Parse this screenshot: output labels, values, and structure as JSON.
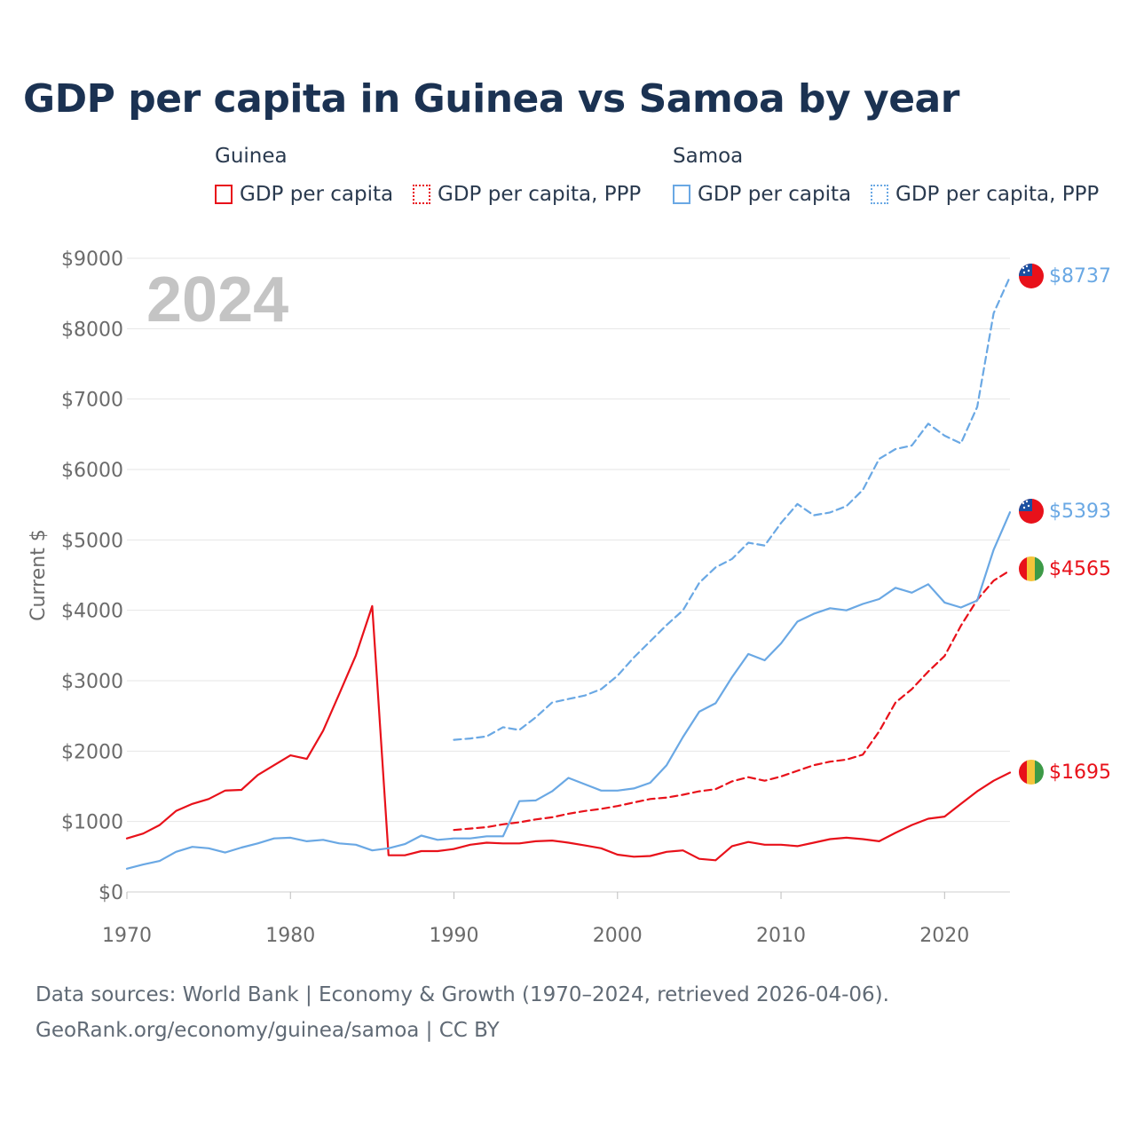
{
  "title": "GDP per capita in Guinea vs Samoa by year",
  "year_watermark": "2024",
  "legend": {
    "groups": [
      {
        "name": "Guinea",
        "items": [
          "GDP per capita",
          "GDP per capita, PPP"
        ],
        "color": "#e8111a"
      },
      {
        "name": "Samoa",
        "items": [
          "GDP per capita",
          "GDP per capita, PPP"
        ],
        "color": "#6aa8e4"
      }
    ]
  },
  "sources": {
    "line1": "Data sources: World Bank | Economy & Growth (1970–2024, retrieved 2026-04-06).",
    "line2": "GeoRank.org/economy/guinea/samoa | CC BY"
  },
  "chart_data": {
    "type": "line",
    "ylabel": "Current $",
    "xlim": [
      1970,
      2024
    ],
    "ylim": [
      0,
      9000
    ],
    "x_ticks": [
      1970,
      1980,
      1990,
      2000,
      2010,
      2020
    ],
    "x_tick_labels": [
      "1970",
      "1980",
      "1990",
      "2000",
      "2010",
      "2020"
    ],
    "y_ticks": [
      0,
      1000,
      2000,
      3000,
      4000,
      5000,
      6000,
      7000,
      8000,
      9000
    ],
    "y_tick_labels": [
      "$0",
      "$1000",
      "$2000",
      "$3000",
      "$4000",
      "$5000",
      "$6000",
      "$7000",
      "$8000",
      "$9000"
    ],
    "grid": true,
    "series": [
      {
        "name": "Guinea GDP per capita",
        "country": "Guinea",
        "color": "#e8111a",
        "dashed": false,
        "end_label": "$1695",
        "x_start": 1970,
        "values": [
          760,
          830,
          950,
          1150,
          1250,
          1320,
          1440,
          1450,
          1660,
          1800,
          1940,
          1890,
          2290,
          2820,
          3360,
          4060,
          520,
          520,
          580,
          580,
          610,
          670,
          700,
          690,
          690,
          720,
          730,
          700,
          660,
          620,
          530,
          500,
          510,
          570,
          590,
          470,
          450,
          650,
          710,
          670,
          670,
          650,
          700,
          750,
          770,
          750,
          720,
          840,
          950,
          1040,
          1070,
          1250,
          1430,
          1580,
          1695
        ]
      },
      {
        "name": "Guinea GDP per capita, PPP",
        "country": "Guinea",
        "color": "#e8111a",
        "dashed": true,
        "end_label": "$4565",
        "x_start": 1990,
        "values": [
          880,
          900,
          920,
          960,
          990,
          1030,
          1060,
          1110,
          1150,
          1180,
          1220,
          1270,
          1320,
          1340,
          1380,
          1430,
          1460,
          1570,
          1630,
          1580,
          1640,
          1720,
          1800,
          1850,
          1880,
          1950,
          2280,
          2690,
          2880,
          3130,
          3350,
          3780,
          4150,
          4420,
          4565
        ]
      },
      {
        "name": "Samoa GDP per capita",
        "country": "Samoa",
        "color": "#6aa8e4",
        "dashed": false,
        "end_label": "$5393",
        "x_start": 1970,
        "values": [
          330,
          390,
          440,
          570,
          640,
          620,
          560,
          630,
          690,
          760,
          770,
          720,
          740,
          690,
          670,
          590,
          620,
          680,
          800,
          740,
          760,
          760,
          790,
          790,
          1290,
          1300,
          1430,
          1620,
          1530,
          1440,
          1440,
          1470,
          1550,
          1800,
          2200,
          2560,
          2680,
          3050,
          3380,
          3290,
          3530,
          3840,
          3950,
          4030,
          4000,
          4090,
          4160,
          4320,
          4250,
          4370,
          4110,
          4040,
          4140,
          4860,
          5393
        ]
      },
      {
        "name": "Samoa GDP per capita, PPP",
        "country": "Samoa",
        "color": "#6aa8e4",
        "dashed": true,
        "end_label": "$8737",
        "x_start": 1990,
        "values": [
          2160,
          2180,
          2210,
          2340,
          2300,
          2480,
          2690,
          2740,
          2790,
          2880,
          3070,
          3330,
          3560,
          3790,
          4000,
          4390,
          4610,
          4730,
          4960,
          4920,
          5240,
          5510,
          5350,
          5390,
          5480,
          5710,
          6150,
          6290,
          6340,
          6650,
          6480,
          6370,
          6890,
          8220,
          8737
        ]
      }
    ]
  }
}
